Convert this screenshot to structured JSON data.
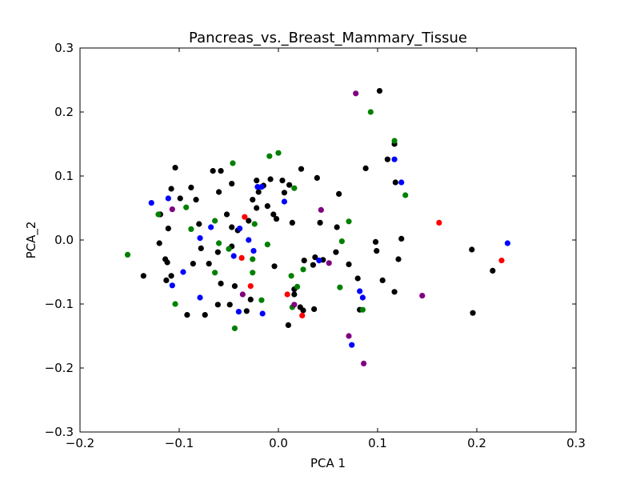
{
  "chart_data": {
    "type": "scatter",
    "title": "Pancreas_vs._Breast_Mammary_Tissue",
    "xlabel": "PCA 1",
    "ylabel": "PCA_2",
    "xlim": [
      -0.2,
      0.3
    ],
    "ylim": [
      -0.3,
      0.3
    ],
    "xticks": [
      -0.2,
      -0.1,
      0.0,
      0.1,
      0.2,
      0.3
    ],
    "xtick_labels": [
      "−0.2",
      "−0.1",
      "0.0",
      "0.1",
      "0.2",
      "0.3"
    ],
    "yticks": [
      -0.3,
      -0.2,
      -0.1,
      0.0,
      0.1,
      0.2,
      0.3
    ],
    "ytick_labels": [
      "−0.3",
      "−0.2",
      "−0.1",
      "0.0",
      "0.1",
      "0.2",
      "0.3"
    ],
    "grid": false,
    "legend": "none",
    "series": [
      {
        "color": "#000000",
        "points": [
          [
            0.102,
            0.233
          ],
          [
            0.117,
            0.15
          ],
          [
            0.11,
            0.126
          ],
          [
            0.088,
            0.112
          ],
          [
            0.118,
            0.09
          ],
          [
            -0.104,
            0.113
          ],
          [
            -0.066,
            0.108
          ],
          [
            -0.058,
            0.108
          ],
          [
            -0.047,
            0.088
          ],
          [
            -0.088,
            0.082
          ],
          [
            -0.108,
            0.08
          ],
          [
            -0.099,
            0.065
          ],
          [
            -0.083,
            0.063
          ],
          [
            -0.06,
            0.075
          ],
          [
            -0.022,
            0.093
          ],
          [
            -0.015,
            0.085
          ],
          [
            -0.008,
            0.095
          ],
          [
            0.004,
            0.093
          ],
          [
            0.011,
            0.086
          ],
          [
            0.023,
            0.111
          ],
          [
            0.039,
            0.097
          ],
          [
            -0.02,
            0.075
          ],
          [
            0.006,
            0.074
          ],
          [
            -0.026,
            0.063
          ],
          [
            -0.011,
            0.053
          ],
          [
            -0.005,
            0.04
          ],
          [
            -0.002,
            0.033
          ],
          [
            -0.022,
            0.05
          ],
          [
            -0.03,
            0.03
          ],
          [
            -0.052,
            0.04
          ],
          [
            -0.111,
            0.018
          ],
          [
            -0.119,
            0.04
          ],
          [
            -0.12,
            0.04
          ],
          [
            -0.08,
            0.025
          ],
          [
            -0.047,
            0.02
          ],
          [
            -0.041,
            0.015
          ],
          [
            0.014,
            0.027
          ],
          [
            0.042,
            0.027
          ],
          [
            0.061,
            0.072
          ],
          [
            0.059,
            0.02
          ],
          [
            0.098,
            -0.003
          ],
          [
            0.121,
            -0.03
          ],
          [
            0.124,
            0.002
          ],
          [
            0.058,
            -0.019
          ],
          [
            0.037,
            -0.027
          ],
          [
            0.071,
            -0.038
          ],
          [
            0.045,
            -0.031
          ],
          [
            0.035,
            -0.039
          ],
          [
            0.026,
            -0.032
          ],
          [
            -0.114,
            -0.03
          ],
          [
            -0.112,
            -0.035
          ],
          [
            -0.108,
            -0.056
          ],
          [
            -0.113,
            -0.063
          ],
          [
            -0.136,
            -0.056
          ],
          [
            -0.086,
            -0.037
          ],
          [
            -0.07,
            -0.037
          ],
          [
            -0.061,
            -0.019
          ],
          [
            -0.078,
            -0.013
          ],
          [
            -0.12,
            -0.005
          ],
          [
            -0.047,
            -0.01
          ],
          [
            -0.004,
            -0.041
          ],
          [
            0.016,
            -0.077
          ],
          [
            0.016,
            -0.085
          ],
          [
            -0.058,
            -0.068
          ],
          [
            -0.044,
            -0.072
          ],
          [
            -0.061,
            -0.101
          ],
          [
            -0.049,
            -0.101
          ],
          [
            -0.028,
            -0.093
          ],
          [
            -0.032,
            -0.111
          ],
          [
            -0.092,
            -0.117
          ],
          [
            -0.074,
            -0.117
          ],
          [
            0.01,
            -0.133
          ],
          [
            0.036,
            -0.108
          ],
          [
            0.025,
            -0.11
          ],
          [
            0.022,
            -0.105
          ],
          [
            0.08,
            -0.06
          ],
          [
            0.099,
            -0.017
          ],
          [
            0.105,
            -0.063
          ],
          [
            0.117,
            -0.081
          ],
          [
            0.082,
            -0.109
          ],
          [
            0.195,
            -0.015
          ],
          [
            0.196,
            -0.114
          ],
          [
            0.216,
            -0.048
          ]
        ]
      },
      {
        "color": "#0000ff",
        "points": [
          [
            0.117,
            0.126
          ],
          [
            0.124,
            0.09
          ],
          [
            0.231,
            -0.005
          ],
          [
            -0.128,
            0.058
          ],
          [
            -0.111,
            0.065
          ],
          [
            -0.021,
            0.083
          ],
          [
            -0.017,
            0.083
          ],
          [
            0.006,
            0.06
          ],
          [
            -0.068,
            0.02
          ],
          [
            -0.079,
            0.003
          ],
          [
            -0.039,
            0.018
          ],
          [
            -0.03,
            0.0
          ],
          [
            -0.025,
            -0.017
          ],
          [
            -0.045,
            -0.025
          ],
          [
            0.041,
            -0.032
          ],
          [
            -0.107,
            -0.071
          ],
          [
            -0.096,
            -0.05
          ],
          [
            -0.079,
            -0.09
          ],
          [
            -0.04,
            -0.112
          ],
          [
            -0.016,
            -0.115
          ],
          [
            0.082,
            -0.08
          ],
          [
            0.085,
            -0.09
          ],
          [
            0.074,
            -0.164
          ]
        ]
      },
      {
        "color": "#008000",
        "points": [
          [
            0.093,
            0.2
          ],
          [
            0.117,
            0.155
          ],
          [
            0.128,
            0.07
          ],
          [
            -0.046,
            0.12
          ],
          [
            -0.009,
            0.131
          ],
          [
            0.0,
            0.136
          ],
          [
            0.016,
            0.081
          ],
          [
            -0.093,
            0.051
          ],
          [
            -0.088,
            0.017
          ],
          [
            -0.064,
            0.03
          ],
          [
            -0.06,
            -0.005
          ],
          [
            -0.05,
            -0.014
          ],
          [
            -0.024,
            0.025
          ],
          [
            -0.011,
            -0.007
          ],
          [
            -0.026,
            -0.03
          ],
          [
            0.071,
            0.029
          ],
          [
            0.064,
            -0.002
          ],
          [
            0.025,
            -0.046
          ],
          [
            0.013,
            -0.056
          ],
          [
            0.019,
            -0.073
          ],
          [
            -0.064,
            -0.051
          ],
          [
            -0.026,
            -0.051
          ],
          [
            -0.017,
            -0.094
          ],
          [
            0.014,
            -0.105
          ],
          [
            0.062,
            -0.074
          ],
          [
            -0.104,
            -0.1
          ],
          [
            -0.044,
            -0.138
          ],
          [
            -0.152,
            -0.023
          ],
          [
            0.085,
            -0.109
          ],
          [
            -0.121,
            0.04
          ]
        ]
      },
      {
        "color": "#ff0000",
        "points": [
          [
            -0.034,
            0.036
          ],
          [
            0.162,
            0.027
          ],
          [
            0.225,
            -0.032
          ],
          [
            -0.037,
            -0.028
          ],
          [
            -0.028,
            -0.072
          ],
          [
            0.009,
            -0.085
          ],
          [
            0.024,
            -0.118
          ]
        ]
      },
      {
        "color": "#800080",
        "points": [
          [
            0.078,
            0.229
          ],
          [
            -0.107,
            0.048
          ],
          [
            0.043,
            0.047
          ],
          [
            0.051,
            -0.036
          ],
          [
            0.145,
            -0.087
          ],
          [
            -0.036,
            -0.085
          ],
          [
            0.016,
            -0.101
          ],
          [
            0.071,
            -0.15
          ],
          [
            0.086,
            -0.193
          ]
        ]
      }
    ]
  }
}
